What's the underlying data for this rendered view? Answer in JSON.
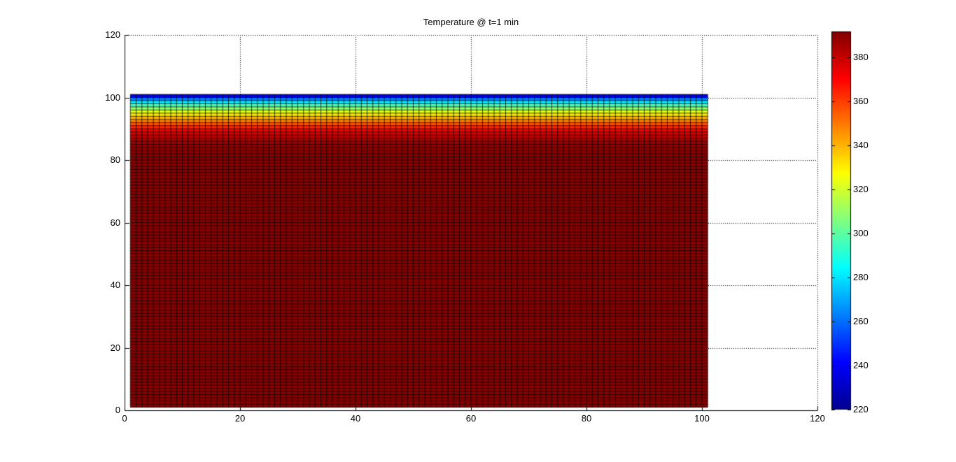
{
  "figure": {
    "background": "#ffffff"
  },
  "chart_data": {
    "type": "heatmap",
    "title": "Temperature @ t=1 min",
    "xlabel": "",
    "ylabel": "",
    "xlim": [
      0,
      120
    ],
    "ylim": [
      0,
      120
    ],
    "x_ticks": [
      0,
      20,
      40,
      60,
      80,
      100,
      120
    ],
    "y_ticks": [
      0,
      20,
      40,
      60,
      80,
      100,
      120
    ],
    "grid": "dotted",
    "grid_color": "#000000",
    "axis_color": "#000000",
    "cell_edge_color": "#000000",
    "heatmap_extent": {
      "x_min": 1,
      "x_max": 101,
      "y_min": 1,
      "y_max": 101
    },
    "cols": 100,
    "rows": 100,
    "value_range": [
      220,
      391.7
    ],
    "bulk_value": 390,
    "surface_profile_top_down": [
      238,
      262,
      281,
      296,
      309,
      321,
      331,
      340,
      349,
      357,
      364,
      370.5,
      376,
      380.5,
      384,
      386.5,
      388,
      389,
      389.5,
      389.8
    ],
    "colormap": {
      "name": "jet",
      "stops": [
        {
          "t": 0.0,
          "color": "#00008f"
        },
        {
          "t": 0.125,
          "color": "#0000ff"
        },
        {
          "t": 0.375,
          "color": "#00ffff"
        },
        {
          "t": 0.625,
          "color": "#ffff00"
        },
        {
          "t": 0.875,
          "color": "#ff0000"
        },
        {
          "t": 1.0,
          "color": "#800000"
        }
      ]
    },
    "colorbar": {
      "min": 220,
      "max": 391.7,
      "ticks": [
        220,
        240,
        260,
        280,
        300,
        320,
        340,
        360,
        380
      ]
    }
  }
}
